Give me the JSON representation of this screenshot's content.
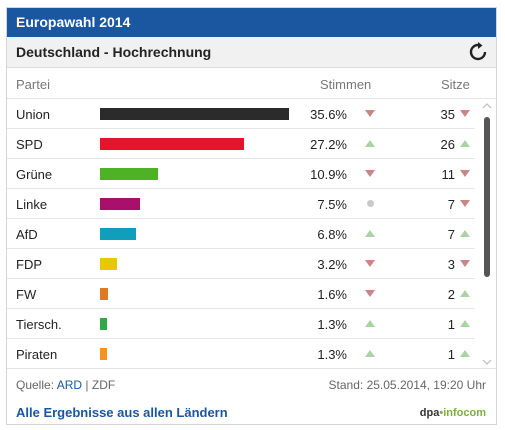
{
  "header": {
    "title": "Europawahl 2014"
  },
  "subheader": {
    "title": "Deutschland - Hochrechnung",
    "refresh_icon": "refresh-icon"
  },
  "columns": {
    "party": "Partei",
    "votes": "Stimmen",
    "seats": "Sitze"
  },
  "parties": [
    {
      "name": "Union",
      "votes": "35.6%",
      "votes_value": 35.6,
      "vote_trend": "down",
      "seats": "35",
      "seat_trend": "down",
      "color": "#2b2b2b"
    },
    {
      "name": "SPD",
      "votes": "27.2%",
      "votes_value": 27.2,
      "vote_trend": "up",
      "seats": "26",
      "seat_trend": "up",
      "color": "#e3142b"
    },
    {
      "name": "Grüne",
      "votes": "10.9%",
      "votes_value": 10.9,
      "vote_trend": "down",
      "seats": "11",
      "seat_trend": "down",
      "color": "#4db224"
    },
    {
      "name": "Linke",
      "votes": "7.5%",
      "votes_value": 7.5,
      "vote_trend": "neutral",
      "seats": "7",
      "seat_trend": "down",
      "color": "#a8106c"
    },
    {
      "name": "AfD",
      "votes": "6.8%",
      "votes_value": 6.8,
      "vote_trend": "up",
      "seats": "7",
      "seat_trend": "up",
      "color": "#0f9fba"
    },
    {
      "name": "FDP",
      "votes": "3.2%",
      "votes_value": 3.2,
      "vote_trend": "down",
      "seats": "3",
      "seat_trend": "down",
      "color": "#e8c800"
    },
    {
      "name": "FW",
      "votes": "1.6%",
      "votes_value": 1.6,
      "vote_trend": "down",
      "seats": "2",
      "seat_trend": "up",
      "color": "#de7a22"
    },
    {
      "name": "Tiersch.",
      "votes": "1.3%",
      "votes_value": 1.3,
      "vote_trend": "up",
      "seats": "1",
      "seat_trend": "up",
      "color": "#2fa84a"
    },
    {
      "name": "Piraten",
      "votes": "1.3%",
      "votes_value": 1.3,
      "vote_trend": "up",
      "seats": "1",
      "seat_trend": "up",
      "color": "#f5931f"
    }
  ],
  "source": {
    "label": "Quelle:",
    "ard": "ARD",
    "separator": "|",
    "zdf": "ZDF",
    "stand": "Stand: 25.05.2014, 19:20 Uhr"
  },
  "footer": {
    "link": "Alle Ergebnisse aus allen Ländern",
    "brand_dpa": "dpa",
    "brand_dot": "•",
    "brand_info": "infocom"
  },
  "trend_colors": {
    "up": "#a9d3a4",
    "down": "#c98686",
    "neutral": "#c8c8c8"
  }
}
